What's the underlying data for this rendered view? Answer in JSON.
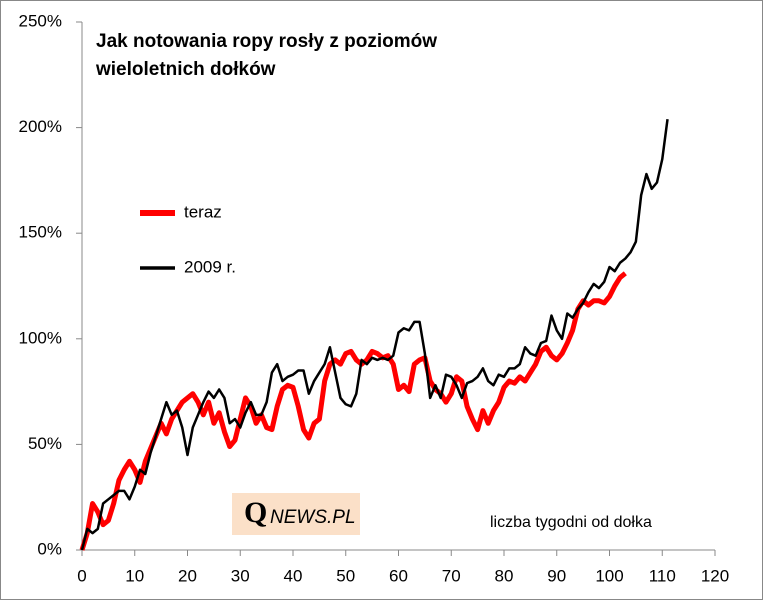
{
  "chart_data": {
    "type": "line",
    "title": [
      "Jak notowania ropy rosły z poziomów",
      "wieloletnich dołków"
    ],
    "x_label": "liczba tygodni od dołka",
    "logo": {
      "initial": "Q",
      "rest": "NEWS.PL"
    },
    "x": [
      0,
      1,
      2,
      3,
      4,
      5,
      6,
      7,
      8,
      9,
      10,
      11,
      12,
      13,
      14,
      15,
      16,
      17,
      18,
      19,
      20,
      21,
      22,
      23,
      24,
      25,
      26,
      27,
      28,
      29,
      30,
      31,
      32,
      33,
      34,
      35,
      36,
      37,
      38,
      39,
      40,
      41,
      42,
      43,
      44,
      45,
      46,
      47,
      48,
      49,
      50,
      51,
      52,
      53,
      54,
      55,
      56,
      57,
      58,
      59,
      60,
      61,
      62,
      63,
      64,
      65,
      66,
      67,
      68,
      69,
      70,
      71,
      72,
      73,
      74,
      75,
      76,
      77,
      78,
      79,
      80,
      81,
      82,
      83,
      84,
      85,
      86,
      87,
      88,
      89,
      90,
      91,
      92,
      93,
      94,
      95,
      96,
      97,
      98,
      99,
      100,
      101,
      102,
      103,
      104,
      105,
      106,
      107,
      108,
      109,
      110,
      111
    ],
    "series": [
      {
        "name": "teraz",
        "color": "#ff0000",
        "width": 5,
        "values": [
          0,
          8,
          22,
          18,
          12,
          14,
          22,
          33,
          38,
          42,
          38,
          32,
          42,
          48,
          54,
          60,
          55,
          62,
          66,
          70,
          72,
          74,
          70,
          64,
          70,
          60,
          65,
          56,
          49,
          52,
          62,
          72,
          68,
          60,
          64,
          58,
          57,
          68,
          76,
          78,
          77,
          68,
          57,
          53,
          60,
          62,
          80,
          88,
          90,
          88,
          93,
          94,
          90,
          88,
          90,
          94,
          93,
          91,
          92,
          88,
          76,
          78,
          75,
          88,
          90,
          91,
          80,
          76,
          74,
          70,
          74,
          82,
          80,
          68,
          62,
          57,
          66,
          60,
          66,
          70,
          77,
          80,
          79,
          82,
          80,
          84,
          88,
          94,
          96,
          92,
          90,
          93,
          98,
          104,
          114,
          118,
          116,
          118,
          118,
          117,
          120,
          125,
          129,
          131,
          null,
          null,
          null,
          null,
          null,
          null,
          null,
          null
        ]
      },
      {
        "name": "2009 r.",
        "color": "#000000",
        "width": 2.5,
        "values": [
          0,
          10,
          8,
          10,
          22,
          24,
          26,
          28,
          28,
          24,
          30,
          38,
          36,
          46,
          54,
          62,
          70,
          64,
          66,
          58,
          45,
          58,
          64,
          70,
          75,
          72,
          76,
          72,
          60,
          62,
          58,
          65,
          70,
          64,
          64,
          70,
          84,
          88,
          80,
          82,
          83,
          85,
          85,
          74,
          80,
          84,
          88,
          96,
          84,
          72,
          69,
          68,
          74,
          90,
          88,
          91,
          90,
          91,
          90,
          92,
          103,
          105,
          104,
          108,
          108,
          93,
          72,
          78,
          72,
          83,
          82,
          78,
          72,
          79,
          80,
          82,
          86,
          80,
          78,
          83,
          82,
          86,
          86,
          88,
          96,
          93,
          92,
          98,
          99,
          111,
          104,
          100,
          112,
          110,
          114,
          117,
          122,
          126,
          124,
          127,
          134,
          132,
          136,
          138,
          141,
          146,
          168,
          178,
          171,
          174,
          185,
          204
        ]
      }
    ],
    "xlim": [
      0,
      120
    ],
    "xticks": [
      0,
      10,
      20,
      30,
      40,
      50,
      60,
      70,
      80,
      90,
      100,
      110,
      120
    ],
    "ylim": [
      0,
      250
    ],
    "yticks": [
      {
        "value": 0,
        "label": "0%"
      },
      {
        "value": 50,
        "label": "50%"
      },
      {
        "value": 100,
        "label": "100%"
      },
      {
        "value": 150,
        "label": "150%"
      },
      {
        "value": 200,
        "label": "200%"
      },
      {
        "value": 250,
        "label": "250%"
      }
    ],
    "grid": false
  }
}
